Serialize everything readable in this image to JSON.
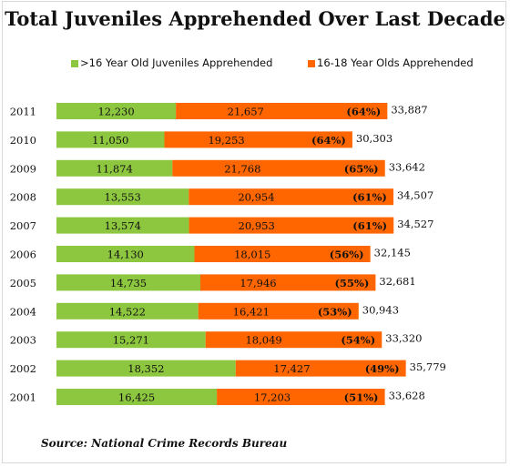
{
  "colors": {
    "green": "#8DC63F",
    "orange": "#FF6600",
    "frame": "#d9d9d9"
  },
  "chart_data": {
    "type": "bar",
    "orientation": "horizontal",
    "stacked": true,
    "title": "Total Juveniles Apprehended Over Last Decade",
    "legend_position": "top",
    "categories": [
      "2011",
      "2010",
      "2009",
      "2008",
      "2007",
      "2006",
      "2005",
      "2004",
      "2003",
      "2002",
      "2001"
    ],
    "series": [
      {
        "name": ">16 Year Old Juveniles Apprehended",
        "values": [
          12230,
          11050,
          11874,
          13553,
          13574,
          14130,
          14735,
          14522,
          15271,
          18352,
          16425
        ],
        "labels": [
          "12,230",
          "11,050",
          "11,874",
          "13,553",
          "13,574",
          "14,130",
          "14,735",
          "14,522",
          "15,271",
          "18,352",
          "16,425"
        ]
      },
      {
        "name": "16-18 Year Olds Apprehended",
        "values": [
          21657,
          19253,
          21768,
          20954,
          20953,
          18015,
          17946,
          16421,
          18049,
          17427,
          17203
        ],
        "labels": [
          "21,657",
          "19,253",
          "21,768",
          "20,954",
          "20,953",
          "18,015",
          "17,946",
          "16,421",
          "18,049",
          "17,427",
          "17,203"
        ]
      }
    ],
    "percentages": [
      "(64%)",
      "(64%)",
      "(65%)",
      "(61%)",
      "(61%)",
      "(56%)",
      "(55%)",
      "(53%)",
      "(54%)",
      "(49%)",
      "(51%)"
    ],
    "totals": [
      "33,887",
      "30,303",
      "33,642",
      "34,507",
      "34,527",
      "32,145",
      "32,681",
      "30,943",
      "33,320",
      "35,779",
      "33,628"
    ],
    "xlim": [
      0,
      36000
    ],
    "grid": false
  },
  "source": "Source: National Crime Records Bureau"
}
